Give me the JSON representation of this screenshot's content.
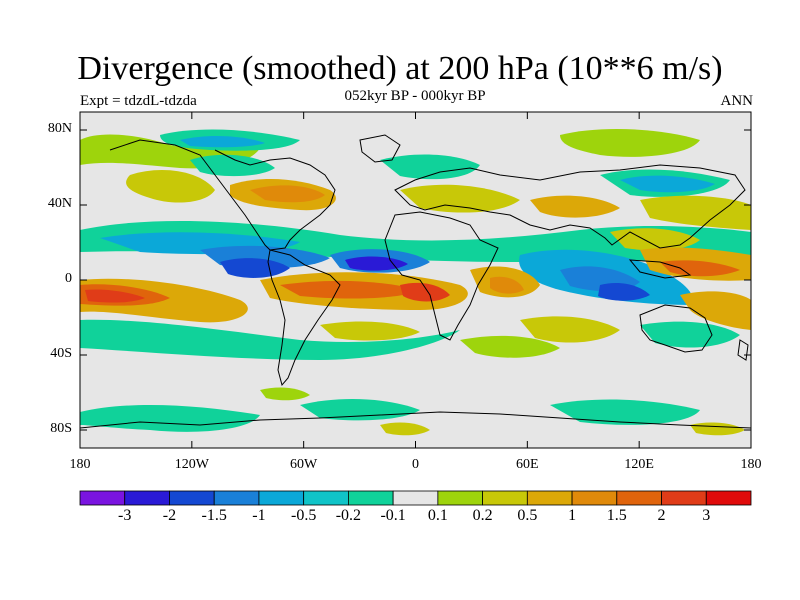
{
  "title": "Divergence (smoothed) at 200 hPa (10**6 m/s)",
  "subtitle": "052kyr BP - 000kyr BP",
  "experiment": "Expt = tdzdL-tdzda",
  "season": "ANN",
  "lat_ticks": [
    "80N",
    "40N",
    "0",
    "40S",
    "80S"
  ],
  "lon_ticks": [
    "180",
    "120W",
    "60W",
    "0",
    "60E",
    "120E",
    "180"
  ],
  "colorbar": {
    "labels": [
      "-3",
      "-2",
      "-1.5",
      "-1",
      "-0.5",
      "-0.2",
      "-0.1",
      "0.1",
      "0.2",
      "0.5",
      "1",
      "1.5",
      "2",
      "3"
    ],
    "colors": [
      "#7a14e0",
      "#2a1ad6",
      "#1448d2",
      "#1a80d8",
      "#0ba8d8",
      "#10c4c8",
      "#10d29a",
      "#e6e6e6",
      "#9ed40c",
      "#c8c808",
      "#dca808",
      "#e08a0a",
      "#e0640c",
      "#e03c18",
      "#e00a0a"
    ]
  },
  "land_color": "#000000",
  "background_color": "#e6e6e6"
}
